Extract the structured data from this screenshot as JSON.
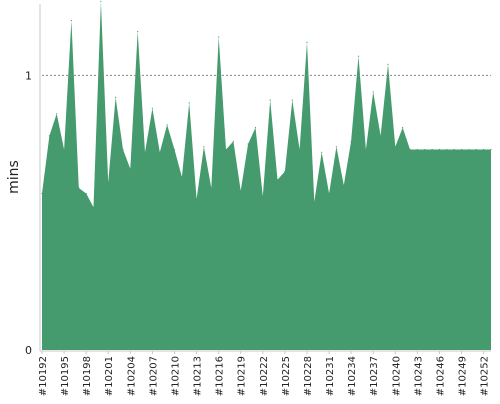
{
  "chart_data": {
    "type": "area",
    "ylabel": "mins",
    "xlabel": "",
    "title": "",
    "ylim": [
      0,
      1.26
    ],
    "y_ticks": [
      0,
      1
    ],
    "y_tick_labels": [
      "0",
      "1"
    ],
    "reference_line": {
      "y": 1,
      "style": "dotted"
    },
    "grid": false,
    "color": "#459b6e",
    "x_tick_labels": [
      "#10192",
      "#10195",
      "#10198",
      "#10201",
      "#10204",
      "#10207",
      "#10210",
      "#10213",
      "#10216",
      "#10219",
      "#10222",
      "#10225",
      "#10228",
      "#10231",
      "#10234",
      "#10237",
      "#10240",
      "#10243",
      "#10246",
      "#10249",
      "#10252"
    ],
    "x": [
      10192,
      10193,
      10194,
      10195,
      10196,
      10197,
      10198,
      10199,
      10200,
      10201,
      10202,
      10203,
      10204,
      10205,
      10206,
      10207,
      10208,
      10209,
      10210,
      10211,
      10212,
      10213,
      10214,
      10215,
      10216,
      10217,
      10218,
      10219,
      10220,
      10221,
      10222,
      10223,
      10224,
      10225,
      10226,
      10227,
      10228,
      10229,
      10230,
      10231,
      10232,
      10233,
      10234,
      10235,
      10236,
      10237,
      10238,
      10239,
      10240,
      10241,
      10242,
      10243,
      10244,
      10245,
      10246,
      10247,
      10248,
      10249,
      10250,
      10251,
      10252,
      10253
    ],
    "values": [
      0.57,
      0.78,
      0.86,
      0.73,
      1.2,
      0.59,
      0.57,
      0.52,
      1.27,
      0.61,
      0.92,
      0.73,
      0.66,
      1.16,
      0.72,
      0.88,
      0.72,
      0.82,
      0.73,
      0.63,
      0.9,
      0.55,
      0.74,
      0.59,
      1.14,
      0.73,
      0.76,
      0.58,
      0.75,
      0.81,
      0.56,
      0.91,
      0.62,
      0.65,
      0.91,
      0.73,
      1.12,
      0.54,
      0.72,
      0.57,
      0.74,
      0.6,
      0.76,
      1.07,
      0.73,
      0.94,
      0.78,
      1.04,
      0.74,
      0.81,
      0.73,
      0.73,
      0.73,
      0.73,
      0.73,
      0.73,
      0.73,
      0.73,
      0.73,
      0.73,
      0.73,
      0.73
    ]
  }
}
